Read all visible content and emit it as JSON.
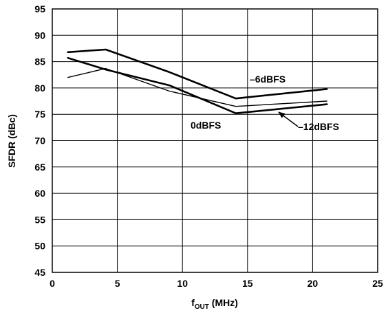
{
  "chart_data": {
    "type": "line",
    "xlabel": {
      "main": "f",
      "sub": "OUT",
      "unit": " (MHz)"
    },
    "ylabel": "SFDR (dBc)",
    "xlim": [
      0,
      25
    ],
    "ylim": [
      45,
      95
    ],
    "x_ticks": [
      "0",
      "5",
      "10",
      "15",
      "20",
      "25"
    ],
    "y_ticks": [
      "95",
      "90",
      "85",
      "80",
      "75",
      "70",
      "65",
      "60",
      "55",
      "50",
      "45"
    ],
    "grid": true,
    "series": [
      {
        "name": "–6dBFS",
        "line_width": "thick",
        "x": [
          1.2,
          4.1,
          9.0,
          14.1,
          21.1
        ],
        "y": [
          86.8,
          87.3,
          83.0,
          78.0,
          79.8
        ]
      },
      {
        "name": "0dBFS",
        "line_width": "thick",
        "x": [
          1.2,
          4.1,
          9.0,
          14.1,
          21.1
        ],
        "y": [
          85.7,
          83.5,
          80.5,
          75.2,
          76.9
        ]
      },
      {
        "name": "–12dBFS",
        "line_width": "thin",
        "x": [
          1.2,
          4.1,
          9.0,
          14.1,
          21.1
        ],
        "y": [
          82.0,
          83.7,
          79.4,
          76.5,
          77.5
        ]
      }
    ]
  }
}
